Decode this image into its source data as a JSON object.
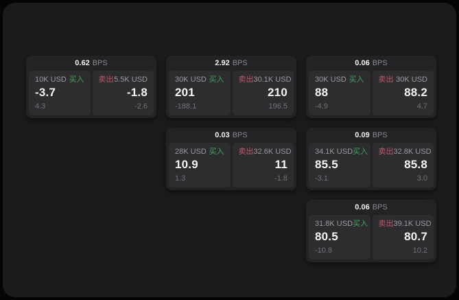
{
  "labels": {
    "buy": "买入",
    "sell": "卖出",
    "bps_unit": "BPS"
  },
  "colors": {
    "buy_green": "#3fa45c",
    "sell_red": "#c5566a",
    "panel_bg": "#1b1b1d",
    "card_bg": "#232325",
    "subcard_bg": "#2d2d2f"
  },
  "cards": [
    {
      "col": 0,
      "row": 0,
      "bps": "0.62",
      "buy": {
        "amount": "10K USD",
        "value": "-3.7",
        "delta": "4.3"
      },
      "sell": {
        "amount": "5.5K USD",
        "value": "-1.8",
        "delta": "-2.6"
      }
    },
    {
      "col": 1,
      "row": 0,
      "bps": "2.92",
      "buy": {
        "amount": "30K USD",
        "value": "201",
        "delta": "-188.1"
      },
      "sell": {
        "amount": "30.1K USD",
        "value": "210",
        "delta": "196.5"
      }
    },
    {
      "col": 2,
      "row": 0,
      "bps": "0.06",
      "buy": {
        "amount": "30K USD",
        "value": "88",
        "delta": "-4.9"
      },
      "sell": {
        "amount": "30K USD",
        "value": "88.2",
        "delta": "4.7"
      }
    },
    {
      "col": 1,
      "row": 1,
      "bps": "0.03",
      "buy": {
        "amount": "28K USD",
        "value": "10.9",
        "delta": "1.3"
      },
      "sell": {
        "amount": "32.6K USD",
        "value": "11",
        "delta": "-1.8"
      }
    },
    {
      "col": 2,
      "row": 1,
      "bps": "0.09",
      "buy": {
        "amount": "34.1K USD",
        "value": "85.5",
        "delta": "-3.1"
      },
      "sell": {
        "amount": "32.8K USD",
        "value": "85.8",
        "delta": "3.0"
      }
    },
    {
      "col": 2,
      "row": 2,
      "bps": "0.06",
      "buy": {
        "amount": "31.8K USD",
        "value": "80.5",
        "delta": "-10.8"
      },
      "sell": {
        "amount": "39.1K USD",
        "value": "80.7",
        "delta": "10.2"
      }
    }
  ]
}
